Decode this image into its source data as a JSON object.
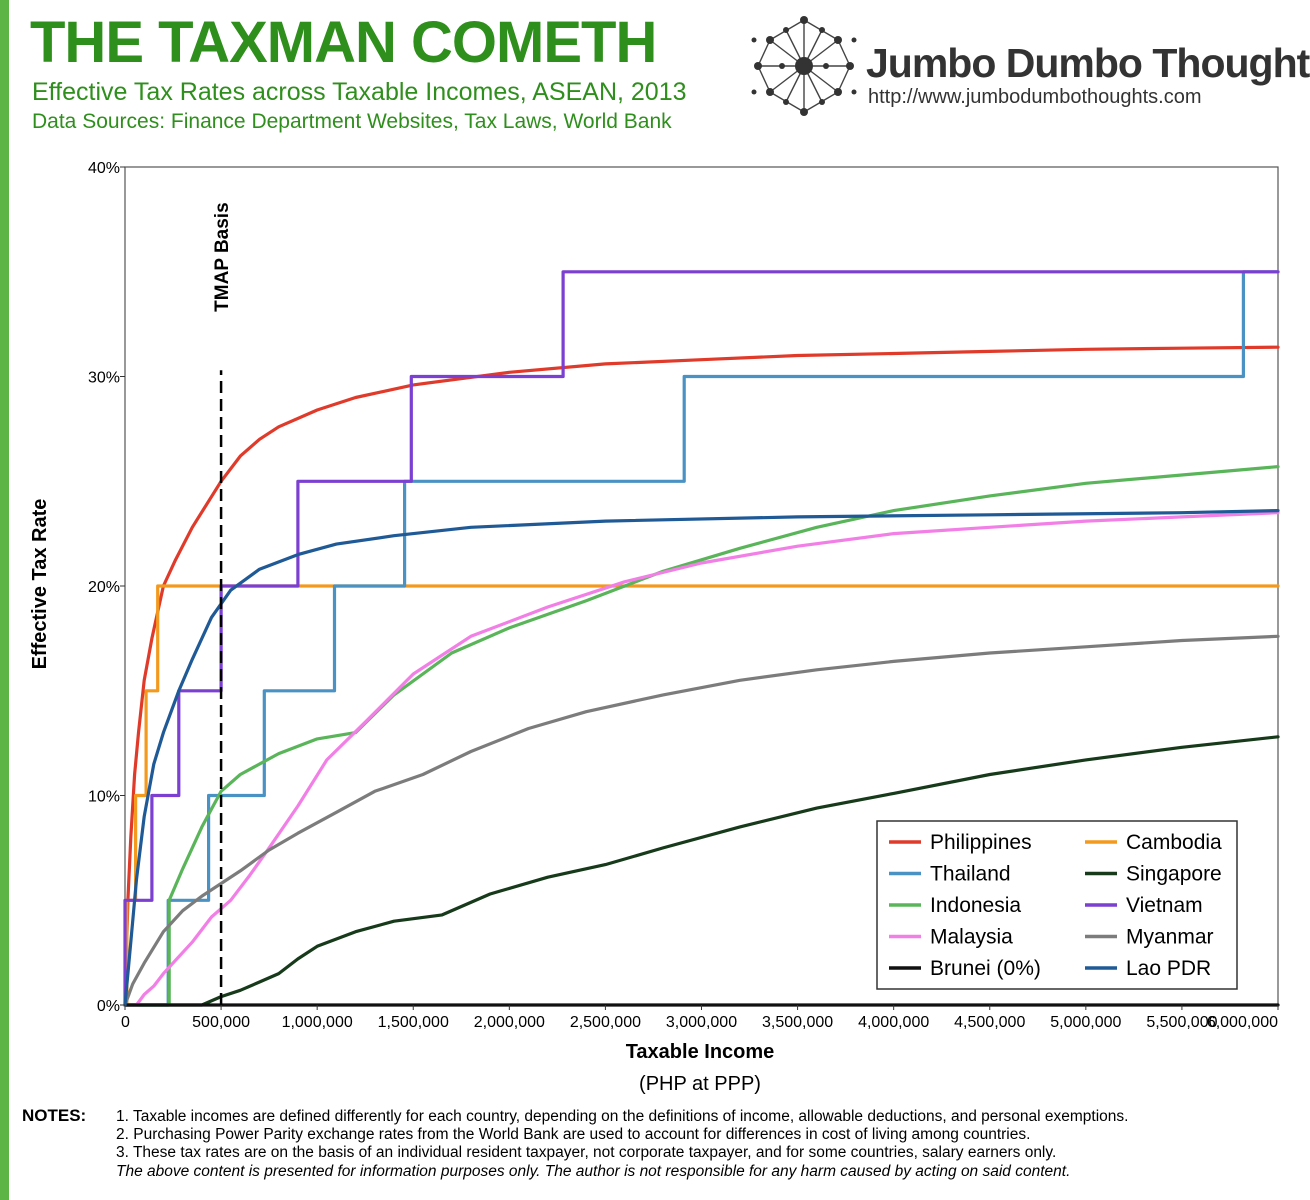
{
  "header": {
    "title": "THE TAXMAN COMETH",
    "subtitle": "Effective Tax Rates across Taxable Incomes, ASEAN, 2013",
    "sources": "Data Sources: Finance Department Websites, Tax Laws, World Bank"
  },
  "brand": {
    "name": "Jumbo Dumbo Thoughts",
    "url": "http://www.jumbodumbothoughts.com",
    "logo_icon": "network-icon"
  },
  "colors": {
    "title_green": "#2f8f1c",
    "side_bar": "#5cb544"
  },
  "notes": {
    "label": "NOTES:",
    "items": [
      "1. Taxable incomes are defined differently for each country, depending on the definitions of income, allowable deductions, and personal exemptions.",
      "2. Purchasing Power Parity exchange rates from the World Bank are used to account for differences in cost of living among countries.",
      "3. These tax rates are on the basis of an individual resident taxpayer, not corporate taxpayer, and for some countries, salary earners only."
    ],
    "disclaimer": "The above content is presented for information purposes only. The author is not responsible for any harm caused by acting on said content."
  },
  "chart_data": {
    "type": "line",
    "title": "THE TAXMAN COMETH",
    "subtitle": "Effective Tax Rates across Taxable Incomes, ASEAN, 2013",
    "xlabel": "Taxable Income",
    "xunit": "(PHP at PPP)",
    "ylabel": "Effective Tax Rate",
    "xlim": [
      0,
      6000000
    ],
    "ylim": [
      0,
      40
    ],
    "xticks": [
      0,
      500000,
      1000000,
      1500000,
      2000000,
      2500000,
      3000000,
      3500000,
      4000000,
      4500000,
      5000000,
      5500000,
      6000000
    ],
    "xtick_labels": [
      "0",
      "500,000",
      "1,000,000",
      "1,500,000",
      "2,000,000",
      "2,500,000",
      "3,000,000",
      "3,500,000",
      "4,000,000",
      "4,500,000",
      "5,000,000",
      "5,500,000",
      "6,000,000"
    ],
    "yticks": [
      0,
      10,
      20,
      30,
      40
    ],
    "ytick_labels": [
      "0%",
      "10%",
      "20%",
      "30%",
      "40%"
    ],
    "grid": false,
    "legend_position": "bottom-right",
    "annotation": {
      "label": "TMAP Basis",
      "x": 500000
    },
    "series": [
      {
        "name": "Philippines",
        "color": "#e03a2a",
        "x": [
          0,
          15000,
          30000,
          50000,
          70000,
          100000,
          140000,
          200000,
          260000,
          350000,
          500000,
          600000,
          700000,
          800000,
          1000000,
          1200000,
          1500000,
          2000000,
          2500000,
          3000000,
          3500000,
          4000000,
          4500000,
          5000000,
          5500000,
          6000000
        ],
        "y": [
          0,
          5,
          8,
          11,
          13,
          15.5,
          17.5,
          20,
          21.2,
          22.8,
          25,
          26.2,
          27.0,
          27.6,
          28.4,
          29.0,
          29.6,
          30.2,
          30.6,
          30.8,
          31.0,
          31.1,
          31.2,
          31.3,
          31.35,
          31.4
        ]
      },
      {
        "name": "Cambodia",
        "color": "#f39a1e",
        "x": [
          0,
          10000,
          10000,
          55000,
          55000,
          110000,
          110000,
          170000,
          170000,
          6000000
        ],
        "y": [
          0,
          0,
          5,
          5,
          10,
          10,
          15,
          15,
          20,
          20
        ]
      },
      {
        "name": "Thailand",
        "color": "#4a92c4",
        "x": [
          0,
          225000,
          225000,
          435000,
          435000,
          725000,
          725000,
          1090000,
          1090000,
          1455000,
          1455000,
          2910000,
          2910000,
          5820000,
          5820000,
          6000000
        ],
        "y": [
          0,
          0,
          5,
          5,
          10,
          10,
          15,
          15,
          20,
          20,
          25,
          25,
          30,
          30,
          35,
          35
        ]
      },
      {
        "name": "Singapore",
        "color": "#173a1b",
        "x": [
          0,
          400000,
          500000,
          600000,
          700000,
          800000,
          900000,
          1000000,
          1200000,
          1400000,
          1650000,
          1900000,
          2200000,
          2500000,
          2800000,
          3200000,
          3600000,
          4000000,
          4500000,
          5000000,
          5500000,
          6000000
        ],
        "y": [
          0,
          0,
          0.4,
          0.7,
          1.1,
          1.5,
          2.2,
          2.8,
          3.5,
          4.0,
          4.3,
          5.3,
          6.1,
          6.7,
          7.5,
          8.5,
          9.4,
          10.1,
          11.0,
          11.7,
          12.3,
          12.8
        ]
      },
      {
        "name": "Indonesia",
        "color": "#5ab55a",
        "x": [
          0,
          230000,
          230000,
          300000,
          400000,
          500000,
          600000,
          800000,
          1000000,
          1200000,
          1400000,
          1700000,
          2000000,
          2400000,
          2800000,
          3200000,
          3600000,
          4000000,
          4500000,
          5000000,
          5500000,
          6000000
        ],
        "y": [
          0,
          0,
          5,
          6.5,
          8.5,
          10.2,
          11.0,
          12.0,
          12.7,
          13.0,
          14.8,
          16.8,
          18.0,
          19.3,
          20.7,
          21.8,
          22.8,
          23.6,
          24.3,
          24.9,
          25.3,
          25.7
        ]
      },
      {
        "name": "Vietnam",
        "color": "#7b3fd1",
        "x": [
          0,
          0,
          140000,
          140000,
          280000,
          280000,
          500000,
          500000,
          900000,
          900000,
          1490000,
          1490000,
          2280000,
          2280000,
          6000000
        ],
        "y": [
          0,
          5,
          5,
          10,
          10,
          15,
          15,
          20,
          20,
          25,
          25,
          30,
          30,
          35,
          35
        ]
      },
      {
        "name": "Malaysia",
        "color": "#f27fe6",
        "x": [
          0,
          60000,
          100000,
          150000,
          200000,
          250000,
          350000,
          450000,
          550000,
          650000,
          750000,
          900000,
          1050000,
          1250000,
          1500000,
          1800000,
          2200000,
          2600000,
          3000000,
          3500000,
          4000000,
          4500000,
          5000000,
          5500000,
          6000000
        ],
        "y": [
          0,
          0,
          0.5,
          0.9,
          1.5,
          2.0,
          3.0,
          4.2,
          5.0,
          6.2,
          7.5,
          9.5,
          11.7,
          13.5,
          15.8,
          17.6,
          19.0,
          20.2,
          21.1,
          21.9,
          22.5,
          22.8,
          23.1,
          23.3,
          23.5
        ]
      },
      {
        "name": "Myanmar",
        "color": "#7c7c7c",
        "x": [
          0,
          40000,
          100000,
          200000,
          300000,
          400000,
          500000,
          600000,
          750000,
          900000,
          1100000,
          1300000,
          1550000,
          1800000,
          2100000,
          2400000,
          2800000,
          3200000,
          3600000,
          4000000,
          4500000,
          5000000,
          5500000,
          6000000
        ],
        "y": [
          0,
          1,
          2,
          3.5,
          4.5,
          5.2,
          5.8,
          6.4,
          7.4,
          8.2,
          9.2,
          10.2,
          11.0,
          12.1,
          13.2,
          14.0,
          14.8,
          15.5,
          16.0,
          16.4,
          16.8,
          17.1,
          17.4,
          17.6
        ]
      },
      {
        "name": "Brunei (0%)",
        "color": "#111111",
        "x": [
          0,
          6000000
        ],
        "y": [
          0,
          0
        ]
      },
      {
        "name": "Lao PDR",
        "color": "#1f5a96",
        "x": [
          0,
          30000,
          60000,
          100000,
          150000,
          200000,
          280000,
          350000,
          450000,
          550000,
          700000,
          900000,
          1100000,
          1400000,
          1800000,
          2500000,
          3500000,
          4500000,
          5500000,
          6000000
        ],
        "y": [
          0,
          3,
          6,
          9,
          11.5,
          13.0,
          15.0,
          16.5,
          18.5,
          19.8,
          20.8,
          21.5,
          22.0,
          22.4,
          22.8,
          23.1,
          23.3,
          23.4,
          23.5,
          23.6
        ]
      }
    ]
  }
}
